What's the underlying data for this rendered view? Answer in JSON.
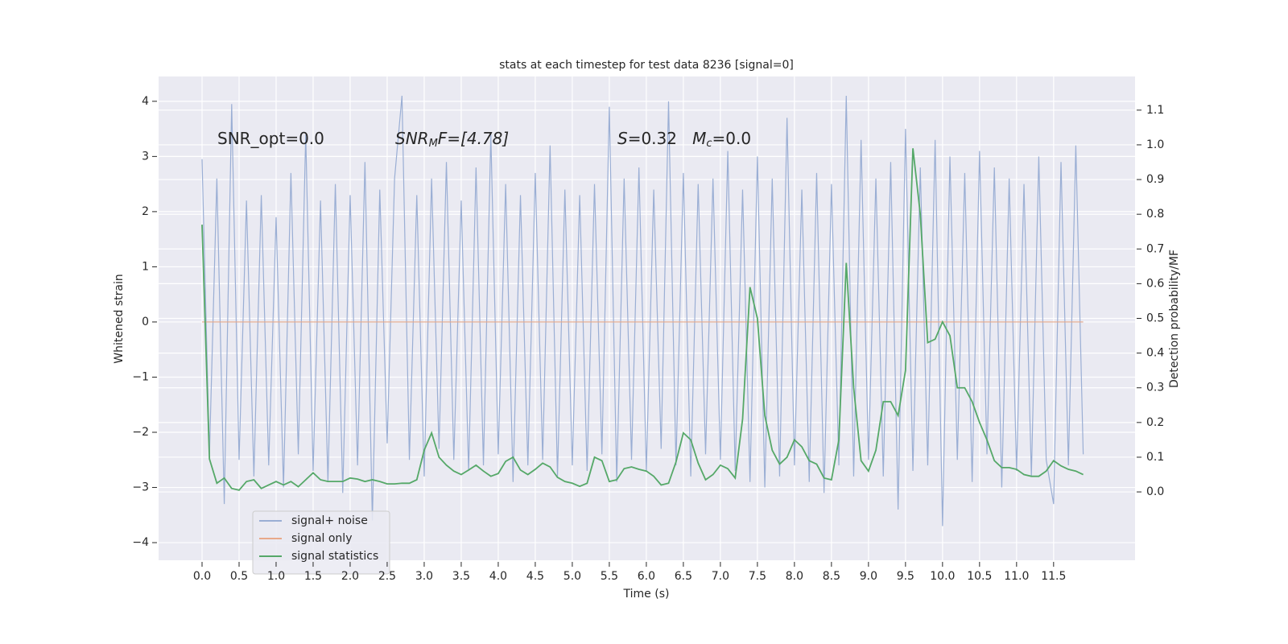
{
  "chart_data": {
    "type": "line",
    "title": "stats at each timestep for test data 8236 [signal=0]",
    "xlabel": "Time (s)",
    "ylabel": "Whitened strain",
    "y2label": "Detection probability/MF",
    "annotations": [
      [
        "SNR_opt=0.0"
      ],
      [
        "SNR",
        "M",
        "F=[4.78]"
      ],
      [
        "S",
        "=0.32   ",
        "M",
        "c",
        "=0.0"
      ]
    ],
    "x": [
      0.0,
      0.1,
      0.2,
      0.3,
      0.4,
      0.5,
      0.6,
      0.7,
      0.8,
      0.9,
      1.0,
      1.1,
      1.2,
      1.3,
      1.4,
      1.5,
      1.6,
      1.7,
      1.8,
      1.9,
      2.0,
      2.1,
      2.2,
      2.3,
      2.4,
      2.5,
      2.6,
      2.7,
      2.8,
      2.9,
      3.0,
      3.1,
      3.2,
      3.3,
      3.4,
      3.5,
      3.6,
      3.7,
      3.8,
      3.9,
      4.0,
      4.1,
      4.2,
      4.3,
      4.4,
      4.5,
      4.6,
      4.7,
      4.8,
      4.9,
      5.0,
      5.1,
      5.2,
      5.3,
      5.4,
      5.5,
      5.6,
      5.7,
      5.8,
      5.9,
      6.0,
      6.1,
      6.2,
      6.3,
      6.4,
      6.5,
      6.6,
      6.7,
      6.8,
      6.9,
      7.0,
      7.1,
      7.2,
      7.3,
      7.4,
      7.5,
      7.6,
      7.7,
      7.8,
      7.9,
      8.0,
      8.1,
      8.2,
      8.3,
      8.4,
      8.5,
      8.6,
      8.7,
      8.8,
      8.9,
      9.0,
      9.1,
      9.2,
      9.3,
      9.4,
      9.5,
      9.6,
      9.7,
      9.8,
      9.9,
      10.0,
      10.1,
      10.2,
      10.3,
      10.4,
      10.5,
      10.6,
      10.7,
      10.8,
      10.9,
      11.0,
      11.1,
      11.2,
      11.3,
      11.4,
      11.5,
      11.6,
      11.7,
      11.8,
      11.9
    ],
    "series": [
      {
        "name": "signal+ noise",
        "color": "#9aaed4",
        "axis": "y",
        "values": [
          2.95,
          -2.4,
          2.6,
          -3.3,
          3.95,
          -2.5,
          2.2,
          -2.8,
          2.3,
          -2.6,
          1.9,
          -3.0,
          2.7,
          -2.4,
          3.4,
          -2.7,
          2.2,
          -2.9,
          2.5,
          -3.1,
          2.3,
          -2.6,
          2.9,
          -3.6,
          2.4,
          -2.2,
          2.6,
          4.1,
          -2.5,
          2.3,
          -2.8,
          2.6,
          -2.3,
          2.9,
          -2.5,
          2.2,
          -2.7,
          2.8,
          -2.6,
          3.4,
          -2.4,
          2.5,
          -2.9,
          2.3,
          -2.6,
          2.7,
          -2.5,
          3.2,
          -2.8,
          2.4,
          -2.6,
          2.3,
          -2.7,
          2.5,
          -2.4,
          3.9,
          -2.9,
          2.6,
          -2.5,
          2.8,
          -2.7,
          2.4,
          -2.3,
          4.0,
          -2.6,
          2.7,
          -2.8,
          2.5,
          -2.4,
          2.6,
          -2.5,
          3.1,
          -2.7,
          2.4,
          -2.9,
          3.0,
          -3.0,
          2.6,
          -2.8,
          3.7,
          -2.6,
          2.4,
          -2.9,
          2.7,
          -3.1,
          2.5,
          -2.6,
          4.1,
          -2.8,
          3.3,
          -2.5,
          2.6,
          -2.8,
          2.9,
          -3.4,
          3.5,
          -2.7,
          2.8,
          -2.6,
          3.3,
          -3.7,
          3.0,
          -2.5,
          2.7,
          -2.9,
          3.1,
          -2.4,
          2.8,
          -3.0,
          2.6,
          -2.7,
          2.5,
          -2.8,
          3.0,
          -2.5,
          -3.3,
          2.9,
          -2.6,
          3.2,
          -2.4
        ]
      },
      {
        "name": "signal only",
        "color": "#e8a98a",
        "axis": "y",
        "values": [
          0,
          0,
          0,
          0,
          0,
          0,
          0,
          0,
          0,
          0,
          0,
          0,
          0,
          0,
          0,
          0,
          0,
          0,
          0,
          0,
          0,
          0,
          0,
          0,
          0,
          0,
          0,
          0,
          0,
          0,
          0,
          0,
          0,
          0,
          0,
          0,
          0,
          0,
          0,
          0,
          0,
          0,
          0,
          0,
          0,
          0,
          0,
          0,
          0,
          0,
          0,
          0,
          0,
          0,
          0,
          0,
          0,
          0,
          0,
          0,
          0,
          0,
          0,
          0,
          0,
          0,
          0,
          0,
          0,
          0,
          0,
          0,
          0,
          0,
          0,
          0,
          0,
          0,
          0,
          0,
          0,
          0,
          0,
          0,
          0,
          0,
          0,
          0,
          0,
          0,
          0,
          0,
          0,
          0,
          0,
          0,
          0,
          0,
          0,
          0,
          0,
          0,
          0,
          0,
          0,
          0,
          0,
          0,
          0,
          0,
          0,
          0,
          0,
          0,
          0,
          0,
          0,
          0,
          0,
          0
        ]
      },
      {
        "name": "signal statistics",
        "color": "#55a868",
        "axis": "y2",
        "values": [
          0.77,
          0.095,
          0.025,
          0.04,
          0.01,
          0.005,
          0.03,
          0.035,
          0.01,
          0.02,
          0.03,
          0.02,
          0.03,
          0.015,
          0.035,
          0.055,
          0.035,
          0.03,
          0.03,
          0.03,
          0.04,
          0.037,
          0.03,
          0.035,
          0.03,
          0.023,
          0.023,
          0.025,
          0.025,
          0.035,
          0.12,
          0.17,
          0.1,
          0.077,
          0.06,
          0.05,
          0.063,
          0.077,
          0.06,
          0.045,
          0.053,
          0.088,
          0.1,
          0.063,
          0.05,
          0.065,
          0.083,
          0.072,
          0.042,
          0.03,
          0.025,
          0.016,
          0.025,
          0.1,
          0.09,
          0.03,
          0.035,
          0.067,
          0.072,
          0.065,
          0.06,
          0.045,
          0.02,
          0.025,
          0.086,
          0.17,
          0.15,
          0.083,
          0.035,
          0.05,
          0.077,
          0.067,
          0.04,
          0.21,
          0.59,
          0.5,
          0.22,
          0.12,
          0.08,
          0.1,
          0.15,
          0.13,
          0.09,
          0.08,
          0.04,
          0.035,
          0.15,
          0.66,
          0.3,
          0.09,
          0.06,
          0.12,
          0.26,
          0.26,
          0.22,
          0.35,
          0.99,
          0.8,
          0.43,
          0.44,
          0.49,
          0.45,
          0.3,
          0.3,
          0.26,
          0.2,
          0.15,
          0.09,
          0.07,
          0.07,
          0.065,
          0.05,
          0.045,
          0.045,
          0.06,
          0.09,
          0.075,
          0.065,
          0.06,
          0.05
        ]
      }
    ],
    "xlim": [
      -0.587,
      12.6
    ],
    "ylim": [
      -4.32,
      4.45
    ],
    "y2lim": [
      -0.197,
      1.197
    ],
    "xticks": [
      {
        "value": 0,
        "label": "0.0"
      },
      {
        "value": 0.5,
        "label": "0.5"
      },
      {
        "value": 1,
        "label": "1.0"
      },
      {
        "value": 1.5,
        "label": "1.5"
      },
      {
        "value": 2,
        "label": "2.0"
      },
      {
        "value": 2.5,
        "label": "2.5"
      },
      {
        "value": 3,
        "label": "3.0"
      },
      {
        "value": 3.5,
        "label": "3.5"
      },
      {
        "value": 4,
        "label": "4.0"
      },
      {
        "value": 4.5,
        "label": "4.5"
      },
      {
        "value": 5,
        "label": "5.0"
      },
      {
        "value": 5.5,
        "label": "5.5"
      },
      {
        "value": 6,
        "label": "6.0"
      },
      {
        "value": 6.5,
        "label": "6.5"
      },
      {
        "value": 7,
        "label": "7.0"
      },
      {
        "value": 7.5,
        "label": "7.5"
      },
      {
        "value": 8,
        "label": "8.0"
      },
      {
        "value": 8.5,
        "label": "8.5"
      },
      {
        "value": 9,
        "label": "9.0"
      },
      {
        "value": 9.5,
        "label": "9.5"
      },
      {
        "value": 10,
        "label": "10.0"
      },
      {
        "value": 10.5,
        "label": "10.5"
      },
      {
        "value": 11,
        "label": "11.0"
      },
      {
        "value": 11.5,
        "label": "11.5"
      }
    ],
    "yticks": [
      {
        "value": -4,
        "label": "−4"
      },
      {
        "value": -3,
        "label": "−3"
      },
      {
        "value": -2,
        "label": "−2"
      },
      {
        "value": -1,
        "label": "−1"
      },
      0,
      1,
      2,
      3,
      4
    ],
    "y2ticks": [
      {
        "value": 0,
        "label": "0.0"
      },
      {
        "value": 0.1,
        "label": "0.1"
      },
      {
        "value": 0.2,
        "label": "0.2"
      },
      {
        "value": 0.3,
        "label": "0.3"
      },
      {
        "value": 0.4,
        "label": "0.4"
      },
      {
        "value": 0.5,
        "label": "0.5"
      },
      {
        "value": 0.6,
        "label": "0.6"
      },
      {
        "value": 0.7,
        "label": "0.7"
      },
      {
        "value": 0.8,
        "label": "0.8"
      },
      {
        "value": 0.9,
        "label": "0.9"
      },
      {
        "value": 1,
        "label": "1.0"
      },
      {
        "value": 1.1,
        "label": "1.1"
      }
    ],
    "grid": true,
    "legend": "lower left"
  }
}
